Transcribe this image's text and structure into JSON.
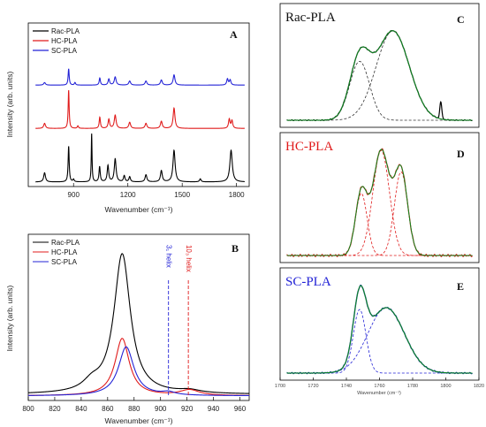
{
  "figure": {
    "colors": {
      "rac": "#000000",
      "hc": "#e01b1b",
      "sc": "#2323d6",
      "fit_total": "#0b8a1f",
      "component": "#333333",
      "sc_spectrum": "#1f3f9e"
    }
  },
  "chart_data": [
    {
      "id": "A",
      "type": "line",
      "panel_letter": "A",
      "xlabel": "Wavenumber (cm⁻¹)",
      "ylabel": "Intensity (arb. units)",
      "xlim": [
        650,
        1870
      ],
      "xticks": [
        900,
        1200,
        1500,
        1800
      ],
      "y_ticks_shown": false,
      "grid": false,
      "legend_position": "top-left",
      "series": [
        {
          "name": "Rac-PLA",
          "color": "#000000",
          "offset": 0,
          "baseline": 0.02,
          "peaks": [
            [
              740,
              0.18,
              6
            ],
            [
              873,
              0.7,
              3.5
            ],
            [
              900,
              0.05,
              4
            ],
            [
              1000,
              0.95,
              2.5
            ],
            [
              1044,
              0.3,
              4
            ],
            [
              1090,
              0.32,
              5
            ],
            [
              1130,
              0.45,
              6
            ],
            [
              1180,
              0.12,
              5
            ],
            [
              1210,
              0.1,
              5
            ],
            [
              1300,
              0.14,
              6
            ],
            [
              1385,
              0.22,
              6
            ],
            [
              1455,
              0.62,
              7
            ],
            [
              1600,
              0.06,
              5
            ],
            [
              1770,
              0.62,
              8
            ]
          ]
        },
        {
          "name": "HC-PLA",
          "color": "#e01b1b",
          "offset": 1.05,
          "baseline": 0.02,
          "peaks": [
            [
              740,
              0.1,
              6
            ],
            [
              873,
              0.75,
              3.2
            ],
            [
              924,
              0.05,
              4
            ],
            [
              1045,
              0.22,
              4
            ],
            [
              1095,
              0.18,
              5
            ],
            [
              1130,
              0.26,
              6
            ],
            [
              1210,
              0.12,
              6
            ],
            [
              1300,
              0.1,
              6
            ],
            [
              1385,
              0.14,
              6
            ],
            [
              1455,
              0.4,
              6
            ],
            [
              1760,
              0.18,
              5
            ],
            [
              1775,
              0.15,
              5
            ]
          ]
        },
        {
          "name": "SC-PLA",
          "color": "#2323d6",
          "offset": 1.9,
          "baseline": 0.02,
          "peaks": [
            [
              740,
              0.05,
              6
            ],
            [
              873,
              0.32,
              3.5
            ],
            [
              908,
              0.05,
              4
            ],
            [
              1045,
              0.14,
              4
            ],
            [
              1095,
              0.12,
              5
            ],
            [
              1130,
              0.16,
              6
            ],
            [
              1210,
              0.08,
              6
            ],
            [
              1300,
              0.08,
              6
            ],
            [
              1385,
              0.1,
              6
            ],
            [
              1455,
              0.2,
              6
            ],
            [
              1750,
              0.12,
              5
            ],
            [
              1765,
              0.1,
              5
            ]
          ]
        }
      ]
    },
    {
      "id": "B",
      "type": "line",
      "panel_letter": "B",
      "xlabel": "Wavenumber (cm⁻¹)",
      "ylabel": "Intensity (arb. units)",
      "xlim": [
        800,
        967
      ],
      "xticks": [
        800,
        820,
        840,
        860,
        880,
        900,
        920,
        940,
        960
      ],
      "y_ticks_shown": false,
      "grid": false,
      "legend_position": "top-left",
      "series": [
        {
          "name": "Rac-PLA",
          "color": "#000000",
          "baseline": 0.03,
          "peaks": [
            [
              871,
              1.0,
              7.5
            ],
            [
              848,
              0.06,
              8
            ],
            [
              922,
              0.02,
              10
            ]
          ]
        },
        {
          "name": "HC-PLA",
          "color": "#e01b1b",
          "baseline": 0.02,
          "peaks": [
            [
              871,
              0.41,
              6.5
            ],
            [
              922,
              0.04,
              9
            ]
          ]
        },
        {
          "name": "SC-PLA",
          "color": "#2323d6",
          "baseline": 0.02,
          "peaks": [
            [
              874,
              0.35,
              7
            ],
            [
              906,
              0.02,
              6
            ]
          ]
        }
      ],
      "annotations": [
        {
          "text": "3₁ helix",
          "x": 906,
          "color": "#2323d6"
        },
        {
          "text": "10₃ helix",
          "x": 921,
          "color": "#e01b1b"
        }
      ]
    },
    {
      "id": "C",
      "type": "line",
      "panel_letter": "C",
      "title": "Rac-PLA",
      "title_color": "#111111",
      "xlim": [
        1700,
        1820
      ],
      "spectrum_color": "#000000",
      "spectrum_peaks": [
        [
          1748,
          0.58,
          6
        ],
        [
          1768,
          0.88,
          10
        ],
        [
          1797,
          0.17,
          0.6
        ]
      ],
      "components": [
        [
          1748,
          0.58,
          6
        ],
        [
          1768,
          0.88,
          10
        ]
      ],
      "show_x_axis": false
    },
    {
      "id": "D",
      "type": "line",
      "panel_letter": "D",
      "title": "HC-PLA",
      "title_color": "#e01b1b",
      "xlim": [
        1700,
        1820
      ],
      "spectrum_color": "#e01b1b",
      "spectrum_peaks": [
        [
          1749,
          0.58,
          3.5
        ],
        [
          1761,
          0.98,
          5
        ],
        [
          1773,
          0.78,
          4
        ]
      ],
      "components": [
        [
          1749,
          0.58,
          3.5
        ],
        [
          1761,
          0.98,
          5
        ],
        [
          1773,
          0.78,
          4
        ]
      ],
      "show_x_axis": false
    },
    {
      "id": "E",
      "type": "line",
      "panel_letter": "E",
      "title": "SC-PLA",
      "title_color": "#2323d6",
      "xlim": [
        1700,
        1820
      ],
      "xticks": [
        1700,
        1720,
        1740,
        1760,
        1780,
        1800,
        1820
      ],
      "xlabel": "Wavenumber (cm⁻¹)",
      "spectrum_color": "#1f3f9e",
      "spectrum_peaks": [
        [
          1748,
          0.7,
          3.8
        ],
        [
          1764,
          0.72,
          11
        ]
      ],
      "components": [
        [
          1748,
          0.7,
          3.8
        ],
        [
          1764,
          0.72,
          11
        ]
      ],
      "show_x_axis": true
    }
  ]
}
